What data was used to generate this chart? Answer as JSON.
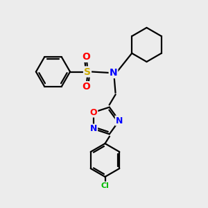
{
  "background_color": "#ececec",
  "figsize": [
    3.0,
    3.0
  ],
  "dpi": 100,
  "atom_colors": {
    "C": "#000000",
    "N": "#0000ff",
    "O": "#ff0000",
    "S": "#ccaa00",
    "Cl": "#00bb00"
  },
  "bond_color": "#000000",
  "bond_width": 1.6,
  "font_size_atom": 9,
  "font_size_cl": 8
}
